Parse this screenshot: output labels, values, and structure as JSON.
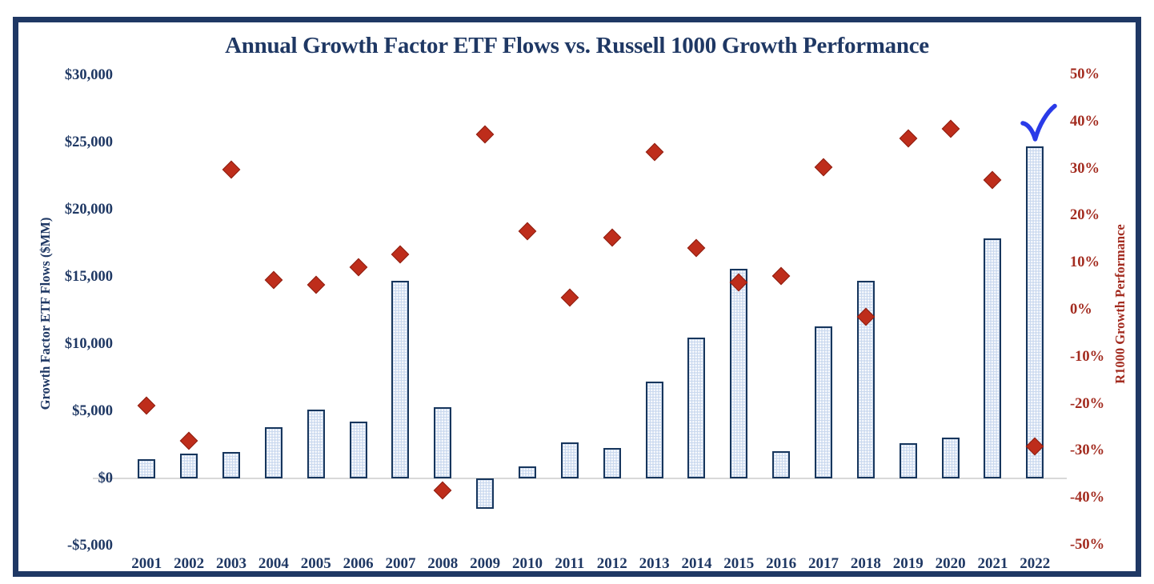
{
  "colors": {
    "navy_text": "#1F3864",
    "frame_border": "#1F3864",
    "bar_fill": "#CCDAEF",
    "bar_border": "#17365D",
    "marker_fill": "#BE2D1B",
    "marker_border": "#8E1E10",
    "red_text": "#A32C20",
    "checkmark_blue": "#2A3BE8",
    "zero_line": "#D9D9D9",
    "background": "#FFFFFF"
  },
  "chart_data": {
    "type": "bar",
    "title": "Annual Growth Factor ETF Flows vs. Russell 1000 Growth Performance",
    "categories": [
      "2001",
      "2002",
      "2003",
      "2004",
      "2005",
      "2006",
      "2007",
      "2008",
      "2009",
      "2010",
      "2011",
      "2012",
      "2013",
      "2014",
      "2015",
      "2016",
      "2017",
      "2018",
      "2019",
      "2020",
      "2021",
      "2022"
    ],
    "series": [
      {
        "name": "Growth Factor ETF Flows ($MM)",
        "type": "bar",
        "axis": "left",
        "values": [
          1400,
          1850,
          1950,
          3800,
          5100,
          4200,
          14700,
          5300,
          -2250,
          900,
          2650,
          2250,
          7200,
          10500,
          15600,
          2000,
          11300,
          14700,
          2600,
          3050,
          17850,
          24700
        ]
      },
      {
        "name": "R1000 Growth Performance",
        "type": "scatter",
        "marker": "diamond",
        "axis": "right",
        "values": [
          -20.4,
          -27.9,
          29.8,
          6.3,
          5.3,
          9.1,
          11.8,
          -38.4,
          37.2,
          16.7,
          2.6,
          15.3,
          33.5,
          13.1,
          5.7,
          7.1,
          30.2,
          -1.5,
          36.4,
          38.5,
          27.6,
          -29.1
        ]
      }
    ],
    "left_axis": {
      "title": "Growth Factor ETF Flows ($MM)",
      "ticks": [
        "$30,000",
        "$25,000",
        "$20,000",
        "$15,000",
        "$10,000",
        "$5,000",
        "$0",
        "-$5,000"
      ],
      "max": 30000,
      "min": -5000
    },
    "right_axis": {
      "title": "R1000 Growth Performance",
      "ticks": [
        "50%",
        "40%",
        "30%",
        "20%",
        "10%",
        "0%",
        "-10%",
        "-20%",
        "-30%",
        "-40%",
        "-50%"
      ],
      "max": 50,
      "min": -50
    },
    "grid": "zero-line-only",
    "legend": "none",
    "annotations": [
      {
        "type": "checkmark",
        "category": "2022",
        "color": "#2A3BE8"
      }
    ]
  }
}
